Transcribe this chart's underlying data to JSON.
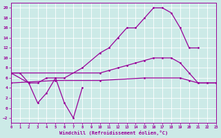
{
  "background_color": "#cceae7",
  "line_color": "#990099",
  "xlabel": "Windchill (Refroidissement éolien,°C)",
  "ylim": [
    -3,
    21
  ],
  "xlim": [
    0,
    23
  ],
  "yticks": [
    -2,
    0,
    2,
    4,
    6,
    8,
    10,
    12,
    14,
    16,
    18,
    20
  ],
  "xticks": [
    0,
    1,
    2,
    3,
    4,
    5,
    6,
    7,
    8,
    9,
    10,
    11,
    12,
    13,
    14,
    15,
    16,
    17,
    18,
    19,
    20,
    21,
    22,
    23
  ],
  "series": [
    {
      "x": [
        0,
        1,
        2,
        3,
        4,
        5,
        6,
        8,
        10,
        11,
        12,
        13,
        14,
        15,
        16,
        17,
        18,
        19,
        20,
        21
      ],
      "y": [
        7,
        7,
        5,
        5,
        6,
        6,
        6,
        8,
        11,
        12,
        14,
        16,
        16,
        18,
        20,
        20,
        19,
        16,
        12,
        12
      ]
    },
    {
      "x": [
        0,
        2,
        3,
        4,
        5,
        6,
        7,
        8
      ],
      "y": [
        7,
        5,
        1,
        3,
        6,
        1,
        -2,
        4
      ]
    },
    {
      "x": [
        0,
        10,
        11,
        12,
        13,
        14,
        15,
        16,
        17,
        18,
        19,
        20,
        21,
        22,
        23
      ],
      "y": [
        7,
        7,
        7.5,
        8,
        8.5,
        9,
        9.5,
        10,
        10,
        10,
        9,
        7,
        5,
        5,
        5
      ]
    },
    {
      "x": [
        0,
        5,
        10,
        15,
        19,
        20,
        21,
        22,
        23
      ],
      "y": [
        5,
        5.5,
        5.5,
        6,
        6,
        5.5,
        5,
        5,
        5
      ]
    }
  ]
}
